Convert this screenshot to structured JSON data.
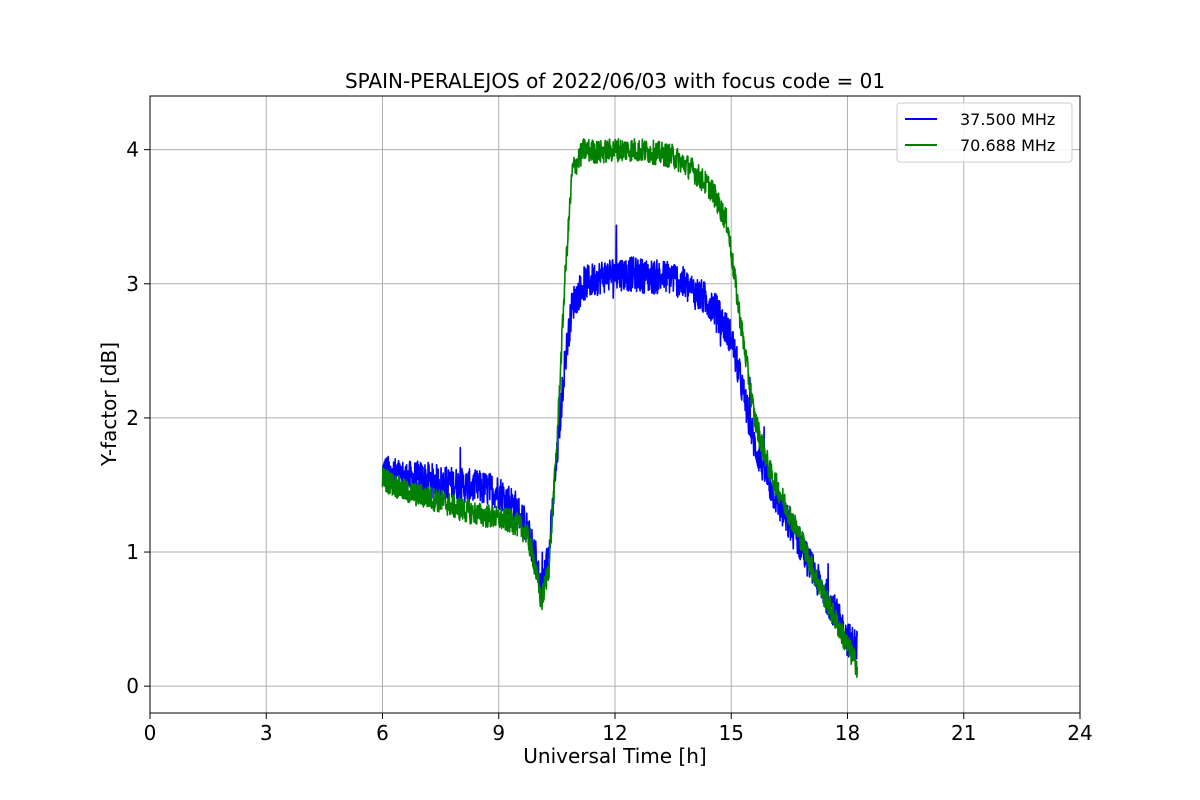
{
  "chart_data": {
    "type": "line",
    "title": "SPAIN-PERALEJOS of 2022/06/03 with focus code = 01",
    "xlabel": "Universal Time [h]",
    "ylabel": "Y-factor [dB]",
    "xlim": [
      0,
      24
    ],
    "ylim": [
      -0.2,
      4.4
    ],
    "xticks": [
      0,
      3,
      6,
      9,
      12,
      15,
      18,
      21,
      24
    ],
    "xtick_labels": [
      "0",
      "3",
      "6",
      "9",
      "12",
      "15",
      "18",
      "21",
      "24"
    ],
    "yticks": [
      0,
      1,
      2,
      3,
      4
    ],
    "ytick_labels": [
      "0",
      "1",
      "2",
      "3",
      "4"
    ],
    "grid": true,
    "legend_position": "top-right",
    "series": [
      {
        "name": "37.500 MHz",
        "color": "#0000ff",
        "x": [
          6.0,
          6.3,
          6.6,
          7.0,
          7.5,
          8.0,
          8.5,
          9.0,
          9.4,
          9.7,
          9.9,
          10.1,
          10.3,
          10.5,
          10.7,
          10.9,
          11.2,
          11.6,
          12.0,
          12.5,
          13.0,
          13.5,
          14.0,
          14.5,
          15.0,
          15.3,
          15.6,
          16.0,
          16.4,
          16.8,
          17.2,
          17.6,
          18.0,
          18.25
        ],
        "y": [
          1.6,
          1.58,
          1.55,
          1.55,
          1.52,
          1.5,
          1.48,
          1.45,
          1.35,
          1.2,
          1.0,
          0.72,
          1.0,
          1.7,
          2.4,
          2.85,
          3.0,
          3.05,
          3.08,
          3.07,
          3.05,
          3.05,
          2.95,
          2.85,
          2.6,
          2.2,
          1.8,
          1.5,
          1.25,
          1.05,
          0.8,
          0.6,
          0.35,
          0.3
        ]
      },
      {
        "name": "70.688 MHz",
        "color": "#008000",
        "x": [
          6.0,
          6.3,
          6.6,
          7.0,
          7.5,
          8.0,
          8.5,
          9.0,
          9.4,
          9.7,
          9.9,
          10.1,
          10.3,
          10.5,
          10.7,
          10.9,
          11.2,
          11.6,
          12.0,
          12.5,
          13.0,
          13.5,
          14.0,
          14.5,
          14.9,
          15.2,
          15.6,
          16.0,
          16.4,
          16.8,
          17.2,
          17.6,
          18.0,
          18.25
        ],
        "y": [
          1.55,
          1.5,
          1.45,
          1.42,
          1.38,
          1.32,
          1.28,
          1.25,
          1.22,
          1.15,
          0.95,
          0.62,
          0.9,
          1.8,
          3.0,
          3.85,
          4.0,
          3.98,
          4.0,
          4.0,
          3.98,
          3.95,
          3.85,
          3.7,
          3.45,
          2.8,
          2.0,
          1.6,
          1.35,
          1.1,
          0.8,
          0.55,
          0.3,
          0.15
        ]
      }
    ]
  }
}
